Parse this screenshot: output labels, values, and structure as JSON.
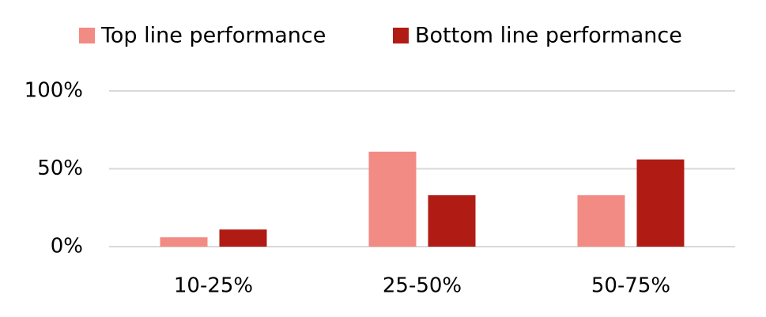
{
  "chart_data": {
    "type": "bar",
    "categories": [
      "10-25%",
      "25-50%",
      "50-75%"
    ],
    "series": [
      {
        "name": "Top line performance",
        "color": "#f28b84",
        "values": [
          6,
          61,
          33
        ]
      },
      {
        "name": "Bottom line performance",
        "color": "#b01c14",
        "values": [
          11,
          33,
          56
        ]
      }
    ],
    "ylim": [
      0,
      100
    ],
    "yticks": [
      {
        "value": 0,
        "label": "0%"
      },
      {
        "value": 50,
        "label": "50%"
      },
      {
        "value": 100,
        "label": "100%"
      }
    ],
    "grid": true,
    "legend": "top"
  }
}
